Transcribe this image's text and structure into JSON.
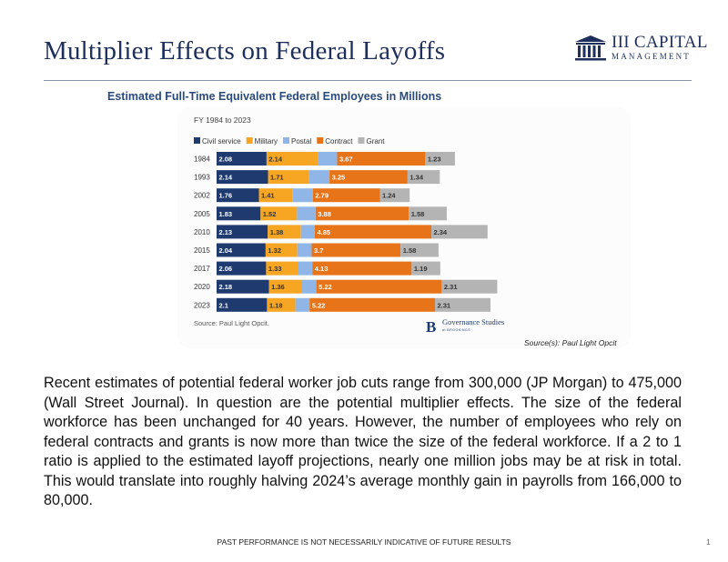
{
  "slide": {
    "title": "Multiplier Effects on Federal Layoffs",
    "logo": {
      "line1": "III CAPITAL",
      "line2": "MANAGEMENT",
      "icon": "building-columns-icon"
    },
    "chart_title": "Estimated Full-Time Equivalent Federal Employees in Millions",
    "source_note": "Source(s): Paul Light Opcit",
    "body": "Recent estimates of potential federal worker job cuts range from 300,000 (JP Morgan) to 475,000 (Wall Street Journal). In question are the potential multiplier effects. The size of the federal workforce has been unchanged for 40 years. However, the number of employees who rely on federal contracts and grants is now more than twice the size of the federal workforce. If a 2 to 1 ratio is applied to the estimated layoff projections, nearly one million jobs may be at risk in total. This would translate into roughly halving 2024’s average monthly gain in payrolls from 166,000 to 80,000.",
    "footer": "PAST PERFORMANCE IS NOT NECESSARILY INDICATIVE OF FUTURE RESULTS",
    "page_number": "1"
  },
  "chart_data": {
    "type": "bar",
    "orientation": "horizontal",
    "stacked": true,
    "subtitle": "FY 1984 to 2023",
    "source": "Source: Paul Light Opcit.",
    "brand": {
      "line1": "Governance Studies",
      "line2": "at BROOKINGS",
      "mark": "B"
    },
    "categories": [
      "1984",
      "1993",
      "2002",
      "2005",
      "2010",
      "2015",
      "2017",
      "2020",
      "2023"
    ],
    "series": [
      {
        "name": "Civil service",
        "color": "#1f3a6e",
        "values": [
          2.08,
          2.14,
          1.76,
          1.83,
          2.13,
          2.04,
          2.06,
          2.18,
          2.1
        ],
        "labels": [
          "2.08",
          "2.14",
          "1.76",
          "1.83",
          "2.13",
          "2.04",
          "2.06",
          "2.18",
          "2.1"
        ]
      },
      {
        "name": "Military",
        "color": "#f6a623",
        "values": [
          2.14,
          1.71,
          1.41,
          1.52,
          1.38,
          1.32,
          1.33,
          1.36,
          1.18
        ],
        "labels": [
          "2.14",
          "1.71",
          "1.41",
          "1.52",
          "1.38",
          "1.32",
          "1.33",
          "1.36",
          "1.18"
        ]
      },
      {
        "name": "Postal",
        "color": "#8fb6e6",
        "values": [
          0.8,
          0.85,
          0.84,
          0.77,
          0.58,
          0.6,
          0.6,
          0.61,
          0.59
        ],
        "labels": []
      },
      {
        "name": "Contract",
        "color": "#e8741a",
        "values": [
          3.67,
          3.25,
          2.79,
          3.88,
          4.85,
          3.7,
          4.13,
          5.22,
          5.22
        ],
        "labels": [
          "3.67",
          "3.25",
          "2.79",
          "3.88",
          "4.85",
          "3.7",
          "4.13",
          "5.22",
          "5.22"
        ]
      },
      {
        "name": "Grant",
        "color": "#b4b4b4",
        "values": [
          1.23,
          1.34,
          1.24,
          1.58,
          2.34,
          1.58,
          1.19,
          2.31,
          2.31
        ],
        "labels": [
          "1.23",
          "1.34",
          "1.24",
          "1.58",
          "2.34",
          "1.58",
          "1.19",
          "2.31",
          "2.31"
        ]
      }
    ],
    "xlim": [
      0,
      12
    ],
    "grid": false,
    "legend_position": "top-left"
  }
}
